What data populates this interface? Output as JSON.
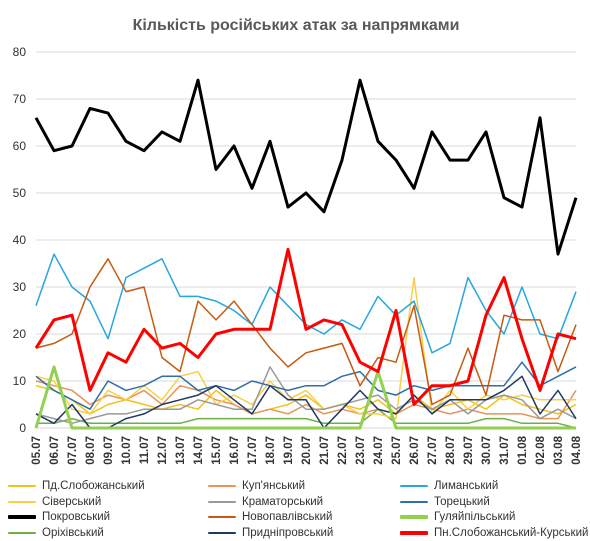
{
  "chart_data": {
    "type": "line",
    "title": "Кількість російських атак за напрямками",
    "xlabel": "",
    "ylabel": "",
    "ylim": [
      0,
      80
    ],
    "yticks": [
      0,
      10,
      20,
      30,
      40,
      50,
      60,
      70,
      80
    ],
    "grid": true,
    "legend_position": "bottom",
    "categories": [
      "05.07",
      "06.07",
      "07.07",
      "08.07",
      "09.07",
      "10.07",
      "11.07",
      "12.07",
      "13.07",
      "14.07",
      "15.07",
      "16.07",
      "17.07",
      "18.07",
      "19.07",
      "20.07",
      "21.07",
      "22.07",
      "23.07",
      "24.07",
      "25.07",
      "26.07",
      "27.07",
      "28.07",
      "29.07",
      "30.07",
      "31.07",
      "01.08",
      "02.08",
      "03.08",
      "04.08"
    ],
    "series": [
      {
        "name": "Пд.Слобожанський",
        "color": "#f2c21c",
        "width": 1.5,
        "values": [
          9,
          8,
          6,
          3,
          5,
          6,
          5,
          4,
          5,
          4,
          8,
          5,
          3,
          4,
          5,
          7,
          4,
          5,
          4,
          6,
          3,
          7,
          4,
          5,
          6,
          4,
          7,
          5,
          4,
          3,
          5
        ]
      },
      {
        "name": "Куп'янський",
        "color": "#e8935a",
        "width": 1.5,
        "values": [
          10,
          9,
          8,
          5,
          7,
          6,
          8,
          5,
          9,
          8,
          6,
          5,
          3,
          4,
          3,
          5,
          3,
          4,
          3,
          4,
          3,
          5,
          4,
          3,
          4,
          3,
          3,
          3,
          2,
          2,
          8
        ]
      },
      {
        "name": "Лиманський",
        "color": "#27a6e0",
        "width": 1.5,
        "values": [
          26,
          37,
          30,
          27,
          19,
          32,
          34,
          36,
          28,
          28,
          27,
          25,
          22,
          30,
          26,
          22,
          20,
          23,
          21,
          28,
          24,
          27,
          16,
          18,
          32,
          25,
          20,
          30,
          20,
          19,
          29
        ]
      },
      {
        "name": "Сіверський",
        "color": "#f7d04a",
        "width": 1.5,
        "values": [
          11,
          10,
          4,
          3,
          8,
          6,
          9,
          6,
          11,
          12,
          5,
          7,
          5,
          10,
          6,
          8,
          4,
          5,
          3,
          3,
          2,
          32,
          3,
          8,
          4,
          7,
          6,
          7,
          6,
          6,
          6
        ]
      },
      {
        "name": "Краматорський",
        "color": "#9a9a9a",
        "width": 1.5,
        "values": [
          3,
          2,
          1,
          2,
          3,
          3,
          4,
          4,
          4,
          6,
          5,
          4,
          4,
          13,
          7,
          4,
          4,
          5,
          6,
          7,
          4,
          6,
          4,
          6,
          3,
          6,
          7,
          6,
          2,
          4,
          2
        ]
      },
      {
        "name": "Торецький",
        "color": "#2f6ea8",
        "width": 1.5,
        "values": [
          11,
          8,
          6,
          4,
          10,
          8,
          9,
          11,
          11,
          8,
          9,
          8,
          10,
          9,
          8,
          9,
          9,
          11,
          12,
          8,
          7,
          9,
          8,
          9,
          9,
          9,
          9,
          14,
          9,
          11,
          13
        ]
      },
      {
        "name": "Покровський",
        "color": "#000000",
        "width": 3,
        "values": [
          66,
          59,
          60,
          68,
          67,
          61,
          59,
          63,
          61,
          74,
          55,
          60,
          51,
          61,
          47,
          50,
          46,
          57,
          74,
          61,
          57,
          51,
          63,
          57,
          57,
          63,
          49,
          47,
          66,
          37,
          49
        ]
      },
      {
        "name": "Новопавлівський",
        "color": "#c55a11",
        "width": 1.5,
        "values": [
          17,
          18,
          20,
          30,
          36,
          29,
          30,
          15,
          12,
          27,
          23,
          27,
          22,
          17,
          13,
          16,
          17,
          18,
          9,
          15,
          14,
          26,
          5,
          7,
          17,
          7,
          24,
          23,
          23,
          12,
          22
        ]
      },
      {
        "name": "Гуляйпільський",
        "color": "#92d050",
        "width": 3,
        "values": [
          0,
          13,
          0,
          0,
          0,
          0,
          0,
          0,
          0,
          0,
          0,
          0,
          0,
          0,
          0,
          0,
          0,
          0,
          0,
          12,
          0,
          0,
          0,
          0,
          0,
          0,
          0,
          0,
          0,
          0,
          0
        ]
      },
      {
        "name": "Оріхівський",
        "color": "#70ad47",
        "width": 1.5,
        "values": [
          1,
          1,
          2,
          1,
          1,
          1,
          1,
          1,
          1,
          2,
          2,
          2,
          2,
          2,
          2,
          2,
          1,
          1,
          1,
          4,
          1,
          1,
          1,
          1,
          1,
          2,
          2,
          1,
          1,
          1,
          0
        ]
      },
      {
        "name": "Придніпровський",
        "color": "#1f3864",
        "width": 1.5,
        "values": [
          3,
          1,
          5,
          0,
          0,
          2,
          3,
          5,
          6,
          7,
          9,
          6,
          3,
          9,
          6,
          6,
          0,
          4,
          8,
          4,
          3,
          7,
          3,
          6,
          6,
          6,
          8,
          11,
          3,
          8,
          2
        ]
      },
      {
        "name": "Пн.Слобожанський-Курський",
        "color": "#ff0000",
        "width": 3,
        "values": [
          17,
          23,
          24,
          8,
          16,
          14,
          21,
          17,
          18,
          15,
          20,
          21,
          21,
          21,
          38,
          21,
          23,
          22,
          14,
          12,
          25,
          5,
          9,
          9,
          10,
          24,
          32,
          19,
          8,
          20,
          19
        ]
      }
    ]
  }
}
